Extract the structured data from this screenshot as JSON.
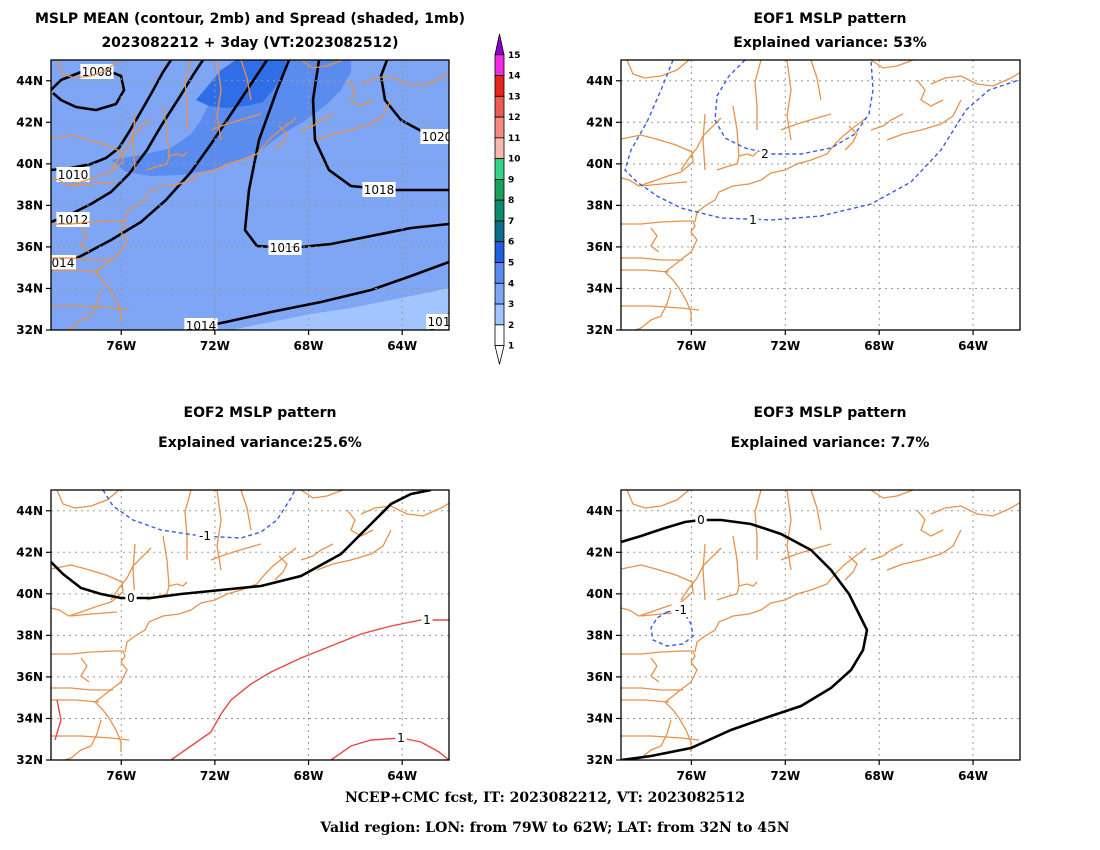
{
  "map_extent": {
    "lon_min": -79,
    "lon_max": -62,
    "lat_min": 32,
    "lat_max": 45
  },
  "axis_ticks": {
    "lon": [
      {
        "value": -76,
        "label": "76W"
      },
      {
        "value": -72,
        "label": "72W"
      },
      {
        "value": -68,
        "label": "68W"
      },
      {
        "value": -64,
        "label": "64W"
      }
    ],
    "lat": [
      {
        "value": 44,
        "label": "44N"
      },
      {
        "value": 42,
        "label": "42N"
      },
      {
        "value": 40,
        "label": "40N"
      },
      {
        "value": 38,
        "label": "38N"
      },
      {
        "value": 36,
        "label": "36N"
      },
      {
        "value": 34,
        "label": "34N"
      },
      {
        "value": 32,
        "label": "32N"
      }
    ]
  },
  "panels": [
    {
      "id": "mean-spread",
      "title_lines": [
        "MSLP MEAN (contour, 2mb) and Spread (shaded, 1mb)",
        "2023082212 + 3day (VT:2023082512)"
      ],
      "contour_labels": [
        "1008",
        "1010",
        "1012",
        "014",
        "1014",
        "1016",
        "1018",
        "1020",
        "101"
      ]
    },
    {
      "id": "eof1",
      "title_lines": [
        "EOF1 MSLP pattern",
        "Explained variance: 53%"
      ],
      "contour_labels": [
        "2",
        "1"
      ]
    },
    {
      "id": "eof2",
      "title_lines": [
        "EOF2 MSLP pattern",
        "Explained variance:25.6%"
      ],
      "contour_labels": [
        "-1",
        "0",
        "1",
        "1"
      ]
    },
    {
      "id": "eof3",
      "title_lines": [
        "EOF3 MSLP pattern",
        "Explained variance: 7.7%"
      ],
      "contour_labels": [
        "0",
        "-1"
      ]
    }
  ],
  "colorbar": {
    "levels": [
      "1",
      "2",
      "3",
      "4",
      "5",
      "6",
      "7",
      "8",
      "9",
      "10",
      "11",
      "12",
      "13",
      "14",
      "15"
    ],
    "colors": [
      "#ffffff",
      "#a3c5ff",
      "#7ea6f5",
      "#5a8cf0",
      "#1f5fe0",
      "#0e6e8a",
      "#0f8a6a",
      "#19a05a",
      "#36d38a",
      "#f7b8b0",
      "#f28b82",
      "#ee5a50",
      "#e8241e",
      "#f229e0",
      "#8a00c8"
    ]
  },
  "shading_colors": {
    "spread_1_2": "#a3c5ff",
    "spread_2_3": "#7ea6f5",
    "spread_3_4": "#5a8cf0",
    "spread_4_5": "#2f6ee6"
  },
  "line_colors": {
    "coast": "#e8914a",
    "negative": "#3a5ce0",
    "positive": "#e84848",
    "zero": "#000000"
  },
  "footer": {
    "line1": "NCEP+CMC fcst, IT: 2023082212, VT: 2023082512",
    "line2": "Valid region: LON: from 79W to 62W; LAT: from 32N to 45N"
  }
}
